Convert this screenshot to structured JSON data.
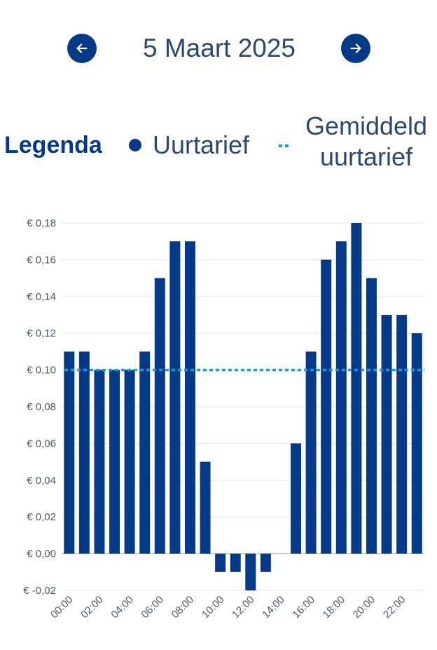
{
  "header": {
    "date": "5 Maart 2025",
    "prev_icon": "arrow-left-icon",
    "next_icon": "arrow-right-icon"
  },
  "legend": {
    "title": "Legenda",
    "series_label": "Uurtarief",
    "average_label": "Gemiddeld uurtarief"
  },
  "colors": {
    "bar": "#063a86",
    "average": "#1a9ad6",
    "text": "#2b4a6b"
  },
  "chart_data": {
    "type": "bar",
    "categories": [
      "00:00",
      "01:00",
      "02:00",
      "03:00",
      "04:00",
      "05:00",
      "06:00",
      "07:00",
      "08:00",
      "09:00",
      "10:00",
      "11:00",
      "12:00",
      "13:00",
      "14:00",
      "15:00",
      "16:00",
      "17:00",
      "18:00",
      "19:00",
      "20:00",
      "21:00",
      "22:00",
      "23:00"
    ],
    "series": [
      {
        "name": "Uurtarief",
        "values": [
          0.11,
          0.11,
          0.1,
          0.1,
          0.1,
          0.11,
          0.15,
          0.17,
          0.17,
          0.05,
          -0.01,
          -0.01,
          -0.02,
          -0.01,
          0,
          0.06,
          0.11,
          0.16,
          0.17,
          0.18,
          0.15,
          0.13,
          0.13,
          0.12
        ]
      }
    ],
    "average": {
      "name": "Gemiddeld uurtarief",
      "value": 0.1
    },
    "x_tick_labels": [
      "00:00",
      "02:00",
      "04:00",
      "06:00",
      "08:00",
      "10:00",
      "12:00",
      "14:00",
      "16:00",
      "18:00",
      "20:00",
      "22:00"
    ],
    "y_tick_labels": [
      "€ -0,02",
      "€ 0,00",
      "€ 0,02",
      "€ 0,04",
      "€ 0,06",
      "€ 0,08",
      "€ 0,10",
      "€ 0,12",
      "€ 0,14",
      "€ 0,16",
      "€ 0,18"
    ],
    "y_ticks": [
      -0.02,
      0,
      0.02,
      0.04,
      0.06,
      0.08,
      0.1,
      0.12,
      0.14,
      0.16,
      0.18
    ],
    "ylim": [
      -0.02,
      0.18
    ],
    "grid": true,
    "xlabel": "",
    "ylabel": ""
  }
}
